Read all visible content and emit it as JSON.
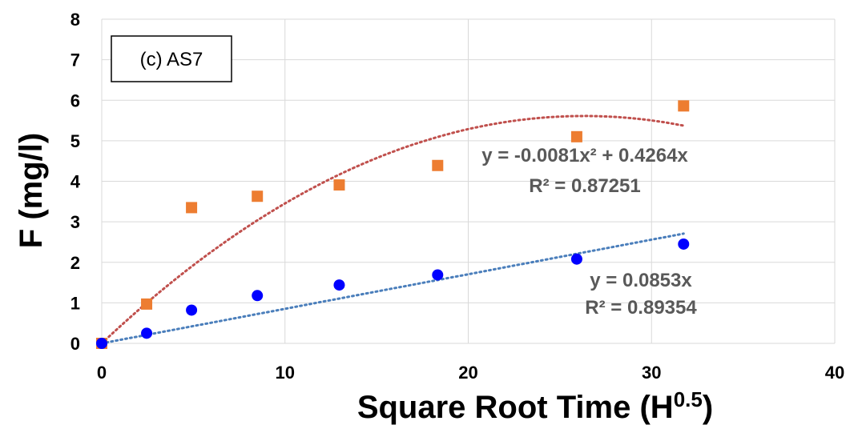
{
  "chart_data": {
    "type": "scatter",
    "xlabel": "Square Root Time (H",
    "xlabel_sup": "0.5",
    "xlabel_close": ")",
    "ylabel": "F (mg/l)",
    "xlim": [
      0,
      40
    ],
    "ylim": [
      0,
      8
    ],
    "xticks": [
      "0",
      "10",
      "20",
      "30",
      "40"
    ],
    "yticks": [
      "0",
      "1",
      "2",
      "3",
      "4",
      "5",
      "6",
      "7",
      "8"
    ],
    "grid": true,
    "panel_label": "(c) AS7",
    "series": [
      {
        "marker": "square",
        "color": "#ED7D31",
        "x": [
          0,
          2.45,
          4.9,
          8.49,
          12.96,
          18.33,
          25.92,
          31.75
        ],
        "y": [
          0,
          0.97,
          3.35,
          3.63,
          3.91,
          4.39,
          5.1,
          5.86
        ],
        "trendline": {
          "kind": "poly2",
          "a": -0.0081,
          "b": 0.4264,
          "color": "#C0504D"
        },
        "equation": "y = -0.0081x² + 0.4264x",
        "r2": "R² = 0.87251"
      },
      {
        "marker": "circle",
        "color": "#0000FF",
        "x": [
          0,
          2.45,
          4.9,
          8.49,
          12.96,
          18.33,
          25.92,
          31.75
        ],
        "y": [
          0,
          0.25,
          0.82,
          1.18,
          1.44,
          1.69,
          2.08,
          2.45
        ],
        "trendline": {
          "kind": "linear",
          "a": 0,
          "b": 0.0853,
          "color": "#4A7EBB"
        },
        "equation": "y = 0.0853x",
        "r2": "R² = 0.89354"
      }
    ]
  }
}
